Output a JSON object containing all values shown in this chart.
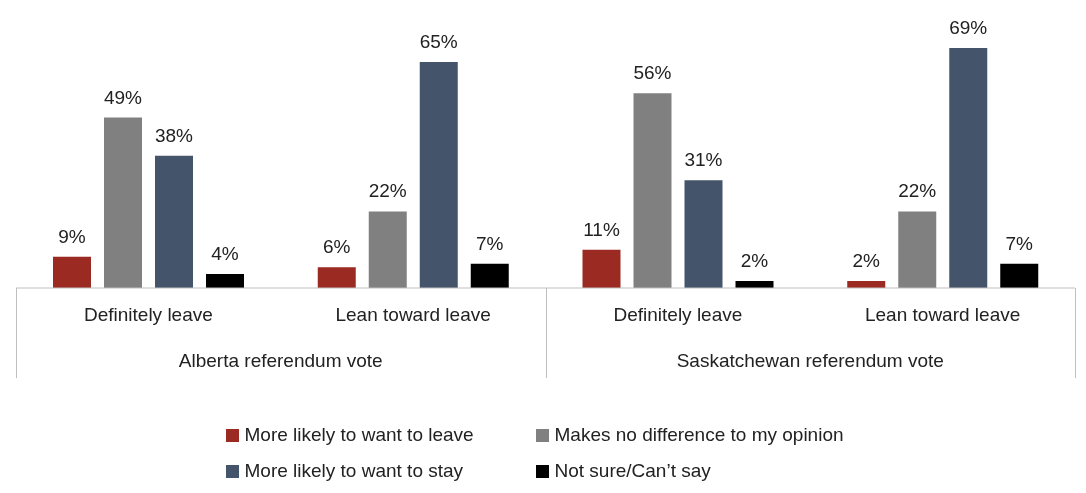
{
  "chart_data": {
    "type": "bar",
    "categories": [
      "Definitely leave",
      "Lean toward leave",
      "Definitely leave",
      "Lean toward leave"
    ],
    "annotations": [
      "Alberta referendum vote",
      "Saskatchewan referendum vote"
    ],
    "series": [
      {
        "name": "More likely to want to leave",
        "color": "#9b2a22",
        "values": [
          9,
          6,
          11,
          2
        ],
        "value_labels": [
          "9%",
          "6%",
          "11%",
          "2%"
        ]
      },
      {
        "name": "Makes no difference to my opinion",
        "color": "#808080",
        "values": [
          49,
          22,
          56,
          22
        ],
        "value_labels": [
          "49%",
          "22%",
          "56%",
          "22%"
        ]
      },
      {
        "name": "More likely to want to stay",
        "color": "#44546a",
        "values": [
          38,
          65,
          31,
          69
        ],
        "value_labels": [
          "38%",
          "65%",
          "31%",
          "69%"
        ]
      },
      {
        "name": "Not sure/Can’t say",
        "color": "#000000",
        "values": [
          4,
          7,
          2,
          7
        ],
        "value_labels": [
          "4%",
          "7%",
          "2%",
          "7%"
        ]
      }
    ],
    "legend": "bottom",
    "grid": false
  }
}
